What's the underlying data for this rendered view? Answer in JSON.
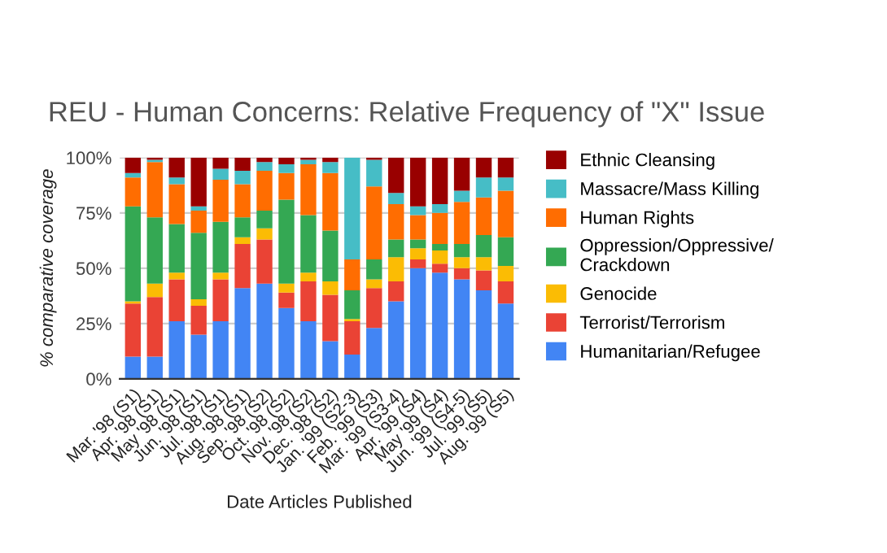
{
  "chart_data": {
    "type": "bar",
    "stacked": true,
    "title": "REU - Human Concerns: Relative Frequency of \"X\" Issue",
    "xlabel": "Date Articles Published",
    "ylabel": "% comparative coverage",
    "categories": [
      "Mar. '98 (S1)",
      "Apr. '98 (S1)",
      "May '98 (S1)",
      "Jun. '98 (S1)",
      "Jul. '98 (S1)",
      "Aug. '98 (S1)",
      "Sep. '98 (S2)",
      "Oct. '98 (S2)",
      "Nov. '98 (S2)",
      "Dec. '98 (S2)",
      "Jan. '99 (S2-3)",
      "Feb. '99 (S3)",
      "Mar. '99 (S3-4)",
      "Apr. '99 (S4)",
      "May '99 (S4)",
      "Jun. '99 (S4-5)",
      "Jul. '99 (S5)",
      "Aug. '99 (S5)"
    ],
    "series": [
      {
        "name": "Humanitarian/Refugee",
        "color": "#4285f4",
        "values": [
          10,
          10,
          26,
          20,
          26,
          41,
          43,
          32,
          26,
          17,
          11,
          23,
          35,
          50,
          48,
          45,
          40,
          34
        ]
      },
      {
        "name": "Terrorist/Terrorism",
        "color": "#ea4335",
        "values": [
          24,
          27,
          19,
          13,
          19,
          20,
          20,
          7,
          18,
          21,
          15,
          18,
          9,
          4,
          4,
          5,
          9,
          10
        ]
      },
      {
        "name": "Genocide",
        "color": "#fbbc04",
        "values": [
          1,
          6,
          3,
          3,
          3,
          3,
          5,
          4,
          4,
          6,
          1,
          4,
          11,
          5,
          6,
          5,
          6,
          7
        ]
      },
      {
        "name": "Oppression/Oppressive/\nCrackdown",
        "color": "#34a853",
        "values": [
          43,
          30,
          22,
          30,
          23,
          9,
          8,
          38,
          26,
          23,
          13,
          9,
          8,
          4,
          3,
          6,
          10,
          13
        ]
      },
      {
        "name": "Human Rights",
        "color": "#ff6d01",
        "values": [
          13,
          25,
          18,
          10,
          19,
          15,
          18,
          12,
          23,
          26,
          14,
          33,
          16,
          11,
          14,
          19,
          17,
          21
        ]
      },
      {
        "name": "Massacre/Mass Killing",
        "color": "#46bdc6",
        "values": [
          2,
          1,
          3,
          2,
          5,
          6,
          4,
          4,
          2,
          5,
          46,
          12,
          5,
          4,
          4,
          5,
          9,
          6
        ]
      },
      {
        "name": "Ethnic Cleansing",
        "color": "#990000",
        "values": [
          7,
          1,
          9,
          22,
          5,
          6,
          2,
          3,
          1,
          2,
          0,
          1,
          16,
          22,
          21,
          15,
          9,
          9
        ]
      }
    ],
    "ylim": [
      0,
      100
    ],
    "yticks": [
      {
        "value": 0,
        "label": "0%"
      },
      {
        "value": 25,
        "label": "25%"
      },
      {
        "value": 50,
        "label": "50%"
      },
      {
        "value": 75,
        "label": "75%"
      },
      {
        "value": 100,
        "label": "100%"
      }
    ],
    "grid": "y",
    "legend": "right"
  }
}
